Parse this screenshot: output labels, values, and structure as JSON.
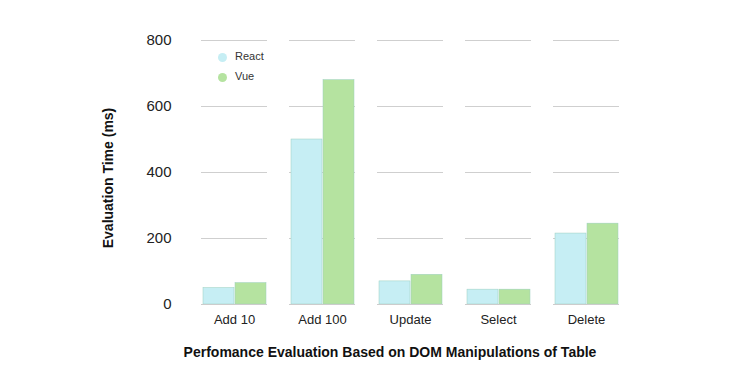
{
  "chart_data": {
    "type": "bar",
    "title": "Perfomance Evaluation Based on DOM Manipulations of Table",
    "y_label": "Evaluation Time (ms)",
    "categories": [
      "Add 10",
      "Add 100",
      "Update",
      "Select",
      "Delete"
    ],
    "series": [
      {
        "name": "React",
        "color": "#c6eef4",
        "values": [
          50,
          500,
          70,
          45,
          215
        ]
      },
      {
        "name": "Vue",
        "color": "#b5e3a0",
        "values": [
          65,
          680,
          90,
          45,
          245
        ]
      }
    ],
    "ylim": [
      0,
      800
    ],
    "yticks": [
      0,
      200,
      400,
      600,
      800
    ],
    "grid": true,
    "legend": "top-left"
  }
}
